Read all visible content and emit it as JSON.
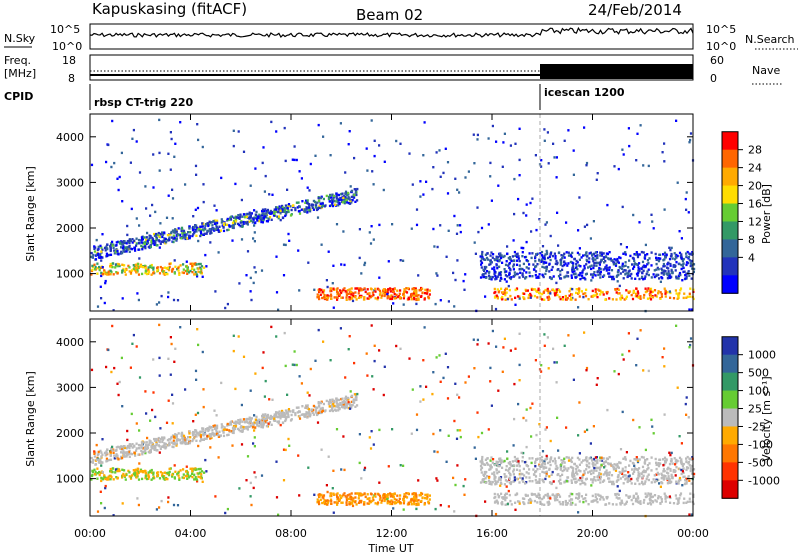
{
  "header": {
    "station": "Kapuskasing (fitACF)",
    "beam": "Beam 02",
    "date": "24/Feb/2014"
  },
  "top_panels": {
    "nsky_label": "N.Sky",
    "nsearch_label": "N.Search",
    "nsky_ticks": [
      "10^5",
      "10^0"
    ],
    "nsearch_ticks": [
      "10^5",
      "10^0"
    ],
    "freq_label": "Freq.",
    "freq_unit": "[MHz]",
    "freq_ticks": [
      "18",
      "8"
    ],
    "nave_label": "Nave",
    "nave_ticks": [
      "60",
      "0"
    ],
    "cpid_label": "CPID",
    "cpid_segments": [
      {
        "label": "rbsp CT-trig 220",
        "start_hour": 0
      },
      {
        "label": "icescan 1200",
        "start_hour": 18
      }
    ]
  },
  "chart_data": [
    {
      "type": "heatmap",
      "name": "power",
      "ylabel": "Slant Range [km]",
      "xlabel": "Time UT",
      "x_ticks": [
        "00:00",
        "04:00",
        "08:00",
        "12:00",
        "16:00",
        "20:00",
        "00:00"
      ],
      "xlim_hours": [
        0,
        24
      ],
      "y_ticks": [
        1000,
        2000,
        3000,
        4000
      ],
      "ylim": [
        180,
        4500
      ],
      "colorbar": {
        "label": "Power [dB]",
        "ticks": [
          "28",
          "24",
          "20",
          "16",
          "12",
          "8",
          "4"
        ],
        "range": [
          0,
          30
        ],
        "colors": [
          "#ff0000",
          "#ff6600",
          "#ffaa00",
          "#ffdd00",
          "#66cc33",
          "#339966",
          "#336699",
          "#2233bb",
          "#0000ff"
        ]
      },
      "features": [
        {
          "name": "rising band",
          "x_hours": [
            0,
            10.6
          ],
          "range_km": [
            1450,
            2750
          ]
        },
        {
          "name": "lower band",
          "x_hours": [
            0,
            4.5
          ],
          "range_km": [
            1000,
            1200
          ]
        },
        {
          "name": "strong echo",
          "x_hours": [
            9,
            13.5
          ],
          "range_km": [
            450,
            700
          ]
        },
        {
          "name": "dense band",
          "x_hours": [
            15.5,
            24
          ],
          "range_km": [
            900,
            1500
          ]
        }
      ]
    },
    {
      "type": "heatmap",
      "name": "velocity",
      "ylabel": "Slant Range [km]",
      "xlabel": "Time UT",
      "x_ticks": [
        "00:00",
        "04:00",
        "08:00",
        "12:00",
        "16:00",
        "20:00",
        "00:00"
      ],
      "xlim_hours": [
        0,
        24
      ],
      "y_ticks": [
        1000,
        2000,
        3000,
        4000
      ],
      "ylim": [
        180,
        4500
      ],
      "colorbar": {
        "label": "Velocity [m s⁻¹]",
        "ticks": [
          "1000",
          "500",
          "100",
          "25",
          "-25",
          "-100",
          "-500",
          "-1000"
        ],
        "colors": [
          "#2233aa",
          "#336699",
          "#339966",
          "#66cc33",
          "#bbbbbb",
          "#ffaa00",
          "#ff7700",
          "#ff3300",
          "#dd0000"
        ]
      }
    }
  ],
  "colors": {
    "black": "#000000",
    "ground_scatter": "#bbbbbb"
  }
}
